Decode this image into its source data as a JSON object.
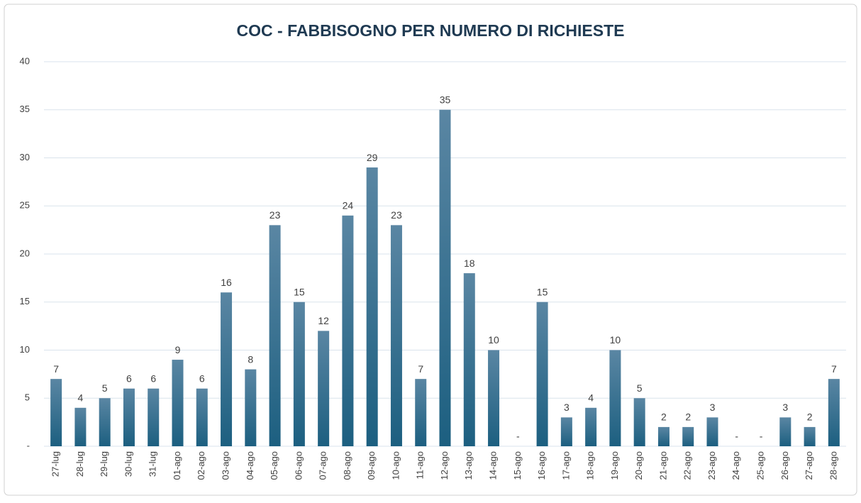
{
  "chart_data": {
    "type": "bar",
    "title": "COC - FABBISOGNO PER NUMERO DI RICHIESTE",
    "categories": [
      "27-lug",
      "28-lug",
      "29-lug",
      "30-lug",
      "31-lug",
      "01-ago",
      "02-ago",
      "03-ago",
      "04-ago",
      "05-ago",
      "06-ago",
      "07-ago",
      "08-ago",
      "09-ago",
      "10-ago",
      "11-ago",
      "12-ago",
      "13-ago",
      "14-ago",
      "15-ago",
      "16-ago",
      "17-ago",
      "18-ago",
      "19-ago",
      "20-ago",
      "21-ago",
      "22-ago",
      "23-ago",
      "24-ago",
      "25-ago",
      "26-ago",
      "27-ago",
      "28-ago"
    ],
    "values": [
      7,
      4,
      5,
      6,
      6,
      9,
      6,
      16,
      8,
      23,
      15,
      12,
      24,
      29,
      23,
      7,
      35,
      18,
      10,
      0,
      15,
      3,
      4,
      10,
      5,
      2,
      2,
      3,
      0,
      0,
      3,
      2,
      7
    ],
    "value_labels": [
      "7",
      "4",
      "5",
      "6",
      "6",
      "9",
      "6",
      "16",
      "8",
      "23",
      "15",
      "12",
      "24",
      "29",
      "23",
      "7",
      "35",
      "18",
      "10",
      "-",
      "15",
      "3",
      "4",
      "10",
      "5",
      "2",
      "2",
      "3",
      "-",
      "-",
      "3",
      "2",
      "7"
    ],
    "color": "#1c5f80",
    "ylim": [
      0,
      40
    ],
    "yticks": [
      {
        "value": 0,
        "label": "-"
      },
      5,
      10,
      15,
      20,
      25,
      30,
      35,
      40
    ],
    "grid": true
  }
}
